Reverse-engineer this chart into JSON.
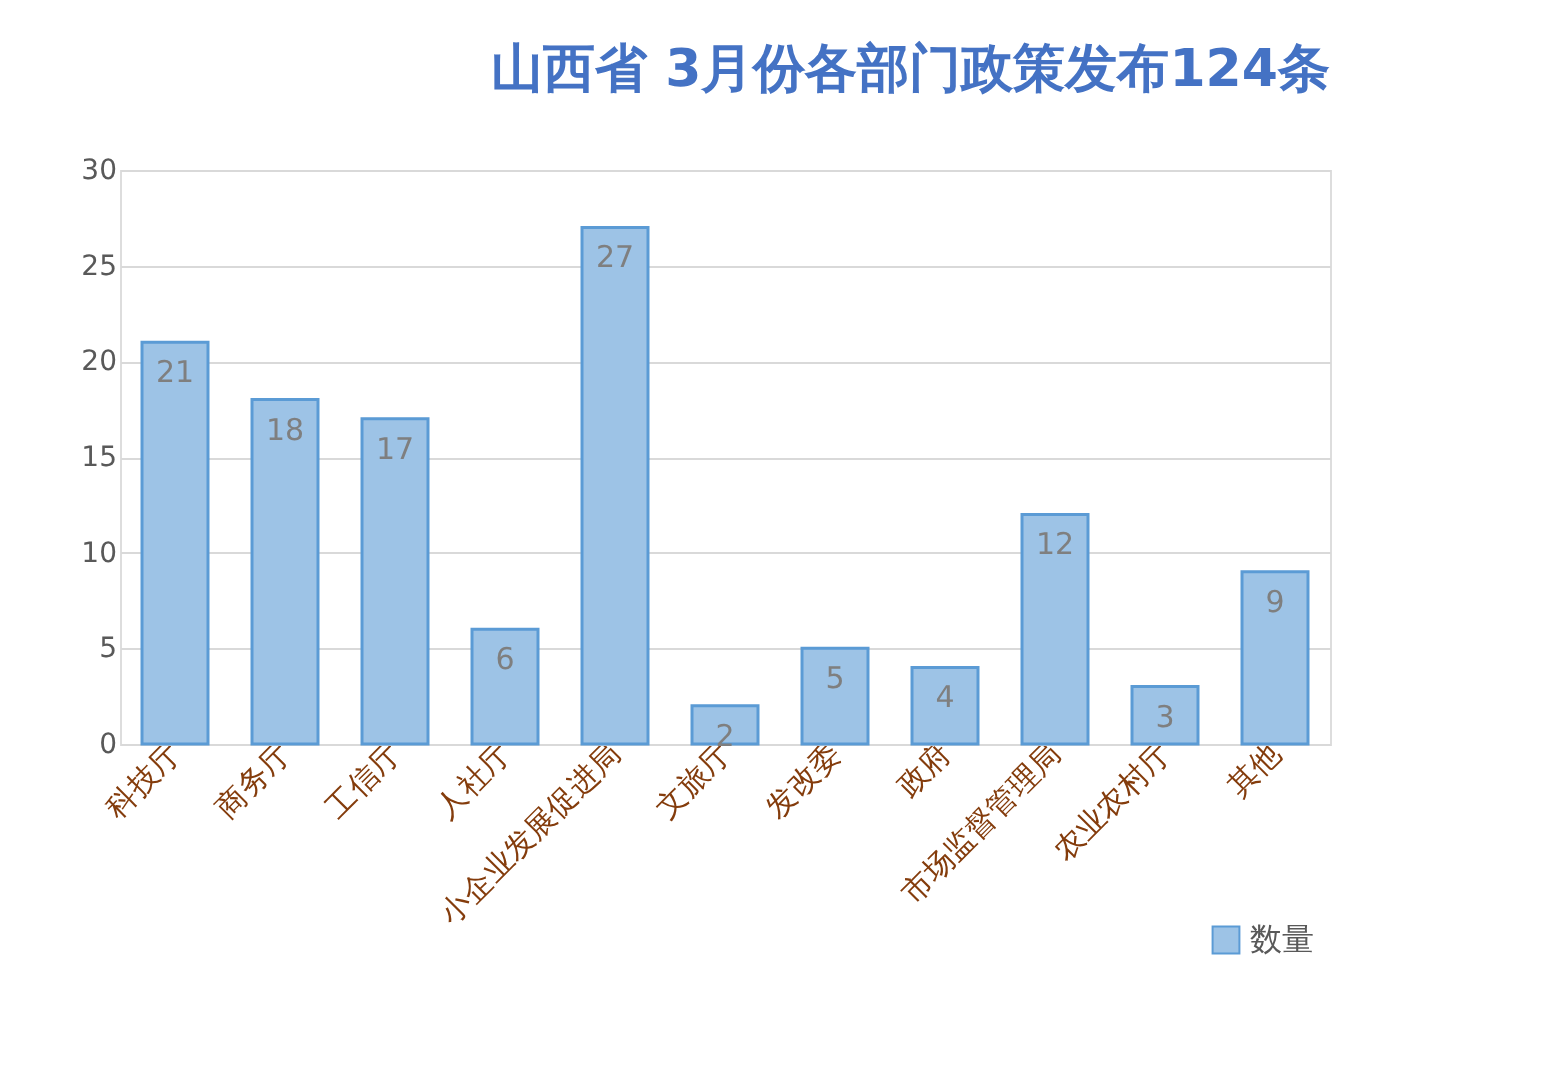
{
  "chart_data": {
    "type": "bar",
    "title": "山西省 3月份各部门政策发布124条",
    "categories": [
      "科技厅",
      "商务厅",
      "工信厅",
      "人社厅",
      "小企业发展促进局",
      "文旅厅",
      "发改委",
      "政府",
      "市场监督管理局",
      "农业农村厅",
      "其他"
    ],
    "series": [
      {
        "name": "数量",
        "color": "#9dc3e6",
        "values": [
          21,
          18,
          17,
          6,
          27,
          2,
          5,
          4,
          12,
          3,
          9
        ]
      }
    ],
    "ylim": [
      0,
      30
    ],
    "yticks": [
      0,
      5,
      10,
      15,
      20,
      25,
      30
    ],
    "grid": "y",
    "legend": "bottom right",
    "data_labels": true
  }
}
